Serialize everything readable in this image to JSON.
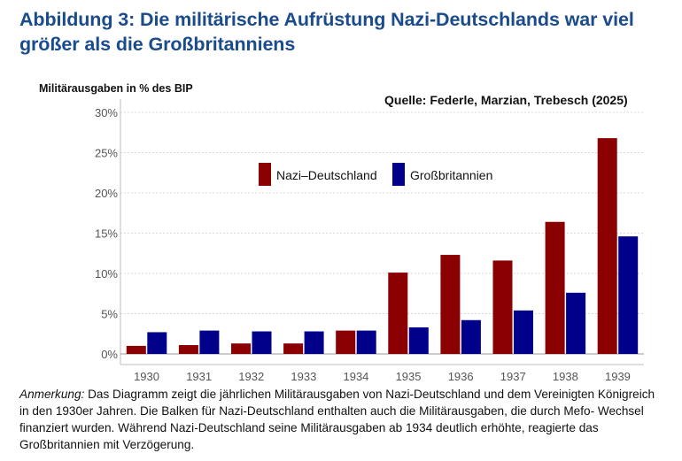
{
  "title": "Abbildung 3: Die militärische Aufrüstung Nazi-Deutschlands war viel größer als die Großbritanniens",
  "source": "Quelle: Federle, Marzian, Trebesch (2025)",
  "note": {
    "label": "Anmerkung:",
    "text": " Das Diagramm zeigt die jährlichen Militärausgaben von Nazi-Deutschland und dem Vereinigten Königreich in den 1930er Jahren. Die Balken für Nazi-Deutschland enthalten auch die Militärausgaben, die durch Mefo- Wechsel finanziert wurden. Während Nazi-Deutschland seine Militärausgaben ab 1934 deutlich erhöhte, reagierte das Großbritannien mit Verzögerung."
  },
  "chart_data": {
    "type": "bar",
    "title": "",
    "ylabel": "Militärausgaben in % des BIP",
    "xlabel": "",
    "categories": [
      "1930",
      "1931",
      "1932",
      "1933",
      "1934",
      "1935",
      "1936",
      "1937",
      "1938",
      "1939"
    ],
    "series": [
      {
        "name": "Nazi–Deutschland",
        "color": "#8b0000",
        "values": [
          1.0,
          1.1,
          1.3,
          1.3,
          2.9,
          10.1,
          12.3,
          11.6,
          16.4,
          26.8
        ]
      },
      {
        "name": "Großbritannien",
        "color": "#00008b",
        "values": [
          2.7,
          2.9,
          2.8,
          2.8,
          2.9,
          3.3,
          4.2,
          5.4,
          7.6,
          14.6
        ]
      }
    ],
    "ylim": [
      0,
      30
    ],
    "yticks": [
      0,
      5,
      10,
      15,
      20,
      25,
      30
    ],
    "ytick_labels": [
      "0%",
      "5%",
      "10%",
      "15%",
      "20%",
      "25%",
      "30%"
    ],
    "grid": "horizontal dotted",
    "legend_position": "upper-center"
  }
}
